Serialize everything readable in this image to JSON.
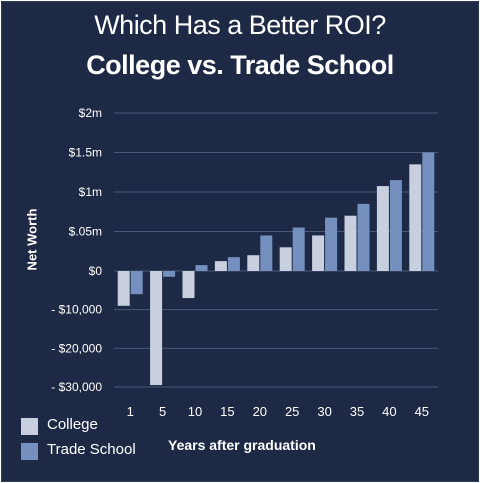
{
  "chart_data": {
    "type": "bar",
    "title": "Which Has a Better ROI?",
    "subtitle": "College vs. Trade School",
    "xlabel": "Years after graduation",
    "ylabel": "Net Worth",
    "categories": [
      "1",
      "5",
      "10",
      "15",
      "20",
      "25",
      "30",
      "35",
      "40",
      "45"
    ],
    "y_tick_labels": [
      "$2m",
      "$1.5m",
      "$1m",
      "$.05m",
      "$0",
      "- $10,000",
      "- $20,000",
      "- $30,000"
    ],
    "series": [
      {
        "name": "College",
        "color": "#c8d0e0",
        "values": [
          -9000,
          -29500,
          -7000,
          500,
          800,
          1200,
          1800,
          2800,
          4300,
          5400
        ]
      },
      {
        "name": "Trade School",
        "color": "#7590bf",
        "values": [
          -6000,
          -1500,
          300,
          700,
          1800,
          2200,
          2700,
          3400,
          4600,
          6000
        ]
      }
    ],
    "grid": true,
    "legend": "bottom-left",
    "scale_note": "positive and negative regions use different scales"
  }
}
